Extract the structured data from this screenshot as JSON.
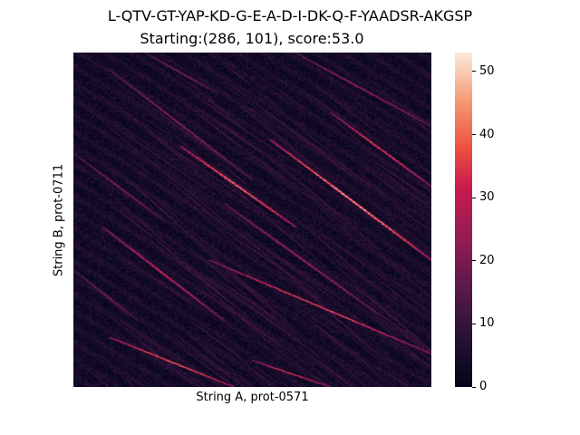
{
  "chart_data": {
    "type": "heatmap",
    "title": "L-QTV-GT-YAP-KD-G-E-A-D-I-DK-Q-F-YAADSR-AKGSP",
    "subtitle": "Starting:(286, 101), score:53.0",
    "xlabel": "String A, prot-0571",
    "ylabel": "String B, prot-0711",
    "colorbar": {
      "min": 0,
      "max": 53,
      "ticks": [
        0,
        10,
        20,
        30,
        40,
        50
      ],
      "colormap": "rocket"
    },
    "x_ticks_shown": false,
    "y_ticks_shown": false,
    "diagonal_streaks": [
      {
        "x0": 0.3,
        "y0": 0.28,
        "x1": 0.62,
        "y1": 0.52,
        "peak": 48
      },
      {
        "x0": 0.55,
        "y0": 0.26,
        "x1": 1.0,
        "y1": 0.62,
        "peak": 53
      },
      {
        "x0": 0.72,
        "y0": 0.18,
        "x1": 1.0,
        "y1": 0.4,
        "peak": 40
      },
      {
        "x0": 0.08,
        "y0": 0.52,
        "x1": 0.42,
        "y1": 0.8,
        "peak": 36
      },
      {
        "x0": 0.38,
        "y0": 0.62,
        "x1": 1.0,
        "y1": 0.9,
        "peak": 42
      },
      {
        "x0": 0.1,
        "y0": 0.85,
        "x1": 0.45,
        "y1": 1.0,
        "peak": 45
      },
      {
        "x0": 0.5,
        "y0": 0.92,
        "x1": 0.72,
        "y1": 1.0,
        "peak": 38
      },
      {
        "x0": 0.1,
        "y0": 0.05,
        "x1": 0.5,
        "y1": 0.38,
        "peak": 26
      },
      {
        "x0": 0.42,
        "y0": 0.45,
        "x1": 0.85,
        "y1": 0.78,
        "peak": 30
      },
      {
        "x0": 0.0,
        "y0": 0.3,
        "x1": 0.25,
        "y1": 0.5,
        "peak": 24
      },
      {
        "x0": 0.62,
        "y0": 0.0,
        "x1": 1.0,
        "y1": 0.22,
        "peak": 28
      },
      {
        "x0": 0.0,
        "y0": 0.65,
        "x1": 0.18,
        "y1": 0.8,
        "peak": 22
      },
      {
        "x0": 0.2,
        "y0": 0.0,
        "x1": 0.4,
        "y1": 0.12,
        "peak": 25
      }
    ]
  }
}
